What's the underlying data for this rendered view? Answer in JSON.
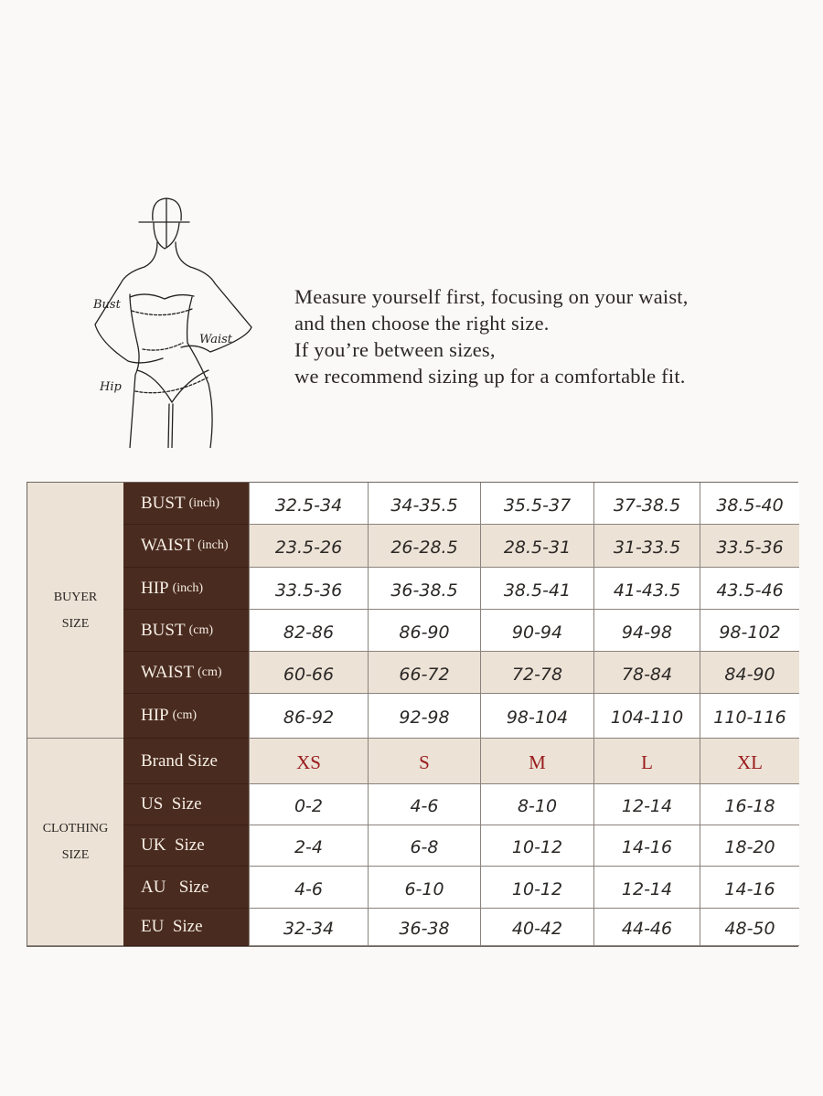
{
  "figure": {
    "labels": {
      "bust": "Bust",
      "waist": "Waist",
      "hip": "Hip"
    }
  },
  "intro": {
    "lines": [
      "Measure yourself first, focusing on your waist,",
      "and then choose the right size.",
      "If you’re between sizes,",
      "we recommend sizing up for a comfortable fit."
    ]
  },
  "colors": {
    "background": "#fbf9f7",
    "row_header": "#4a2b1f",
    "highlight": "#ece2d6",
    "brand_size": "#9a1c1c"
  },
  "table": {
    "groups": [
      {
        "label_lines": [
          "BUYER",
          "SIZE"
        ],
        "rows": [
          {
            "label": "BUST",
            "unit": "(inch)",
            "highlight": false,
            "values": [
              "32.5-34",
              "34-35.5",
              "35.5-37",
              "37-38.5",
              "38.5-40"
            ]
          },
          {
            "label": "WAIST",
            "unit": "(inch)",
            "highlight": true,
            "values": [
              "23.5-26",
              "26-28.5",
              "28.5-31",
              "31-33.5",
              "33.5-36"
            ]
          },
          {
            "label": "HIP",
            "unit": "(inch)",
            "highlight": false,
            "values": [
              "33.5-36",
              "36-38.5",
              "38.5-41",
              "41-43.5",
              "43.5-46"
            ]
          },
          {
            "label": "BUST",
            "unit": "(cm)",
            "highlight": false,
            "values": [
              "82-86",
              "86-90",
              "90-94",
              "94-98",
              "98-102"
            ]
          },
          {
            "label": "WAIST",
            "unit": "(cm)",
            "highlight": true,
            "values": [
              "60-66",
              "66-72",
              "72-78",
              "78-84",
              "84-90"
            ]
          },
          {
            "label": "HIP",
            "unit": "(cm)",
            "highlight": false,
            "values": [
              "86-92",
              "92-98",
              "98-104",
              "104-110",
              "110-116"
            ]
          }
        ]
      },
      {
        "label_lines": [
          "CLOTHING",
          "SIZE"
        ],
        "rows": [
          {
            "label": "Brand Size",
            "unit": "",
            "highlight": true,
            "brand": true,
            "values": [
              "XS",
              "S",
              "M",
              "L",
              "XL"
            ]
          },
          {
            "label": "US  Size",
            "unit": "",
            "highlight": false,
            "values": [
              "0-2",
              "4-6",
              "8-10",
              "12-14",
              "16-18"
            ]
          },
          {
            "label": "UK  Size",
            "unit": "",
            "highlight": false,
            "values": [
              "2-4",
              "6-8",
              "10-12",
              "14-16",
              "18-20"
            ]
          },
          {
            "label": "AU   Size",
            "unit": "",
            "highlight": false,
            "values": [
              "4-6",
              "6-10",
              "10-12",
              "12-14",
              "14-16"
            ]
          },
          {
            "label": "EU  Size",
            "unit": "",
            "highlight": false,
            "values": [
              "32-34",
              "36-38",
              "40-42",
              "44-46",
              "48-50"
            ]
          }
        ]
      }
    ]
  }
}
